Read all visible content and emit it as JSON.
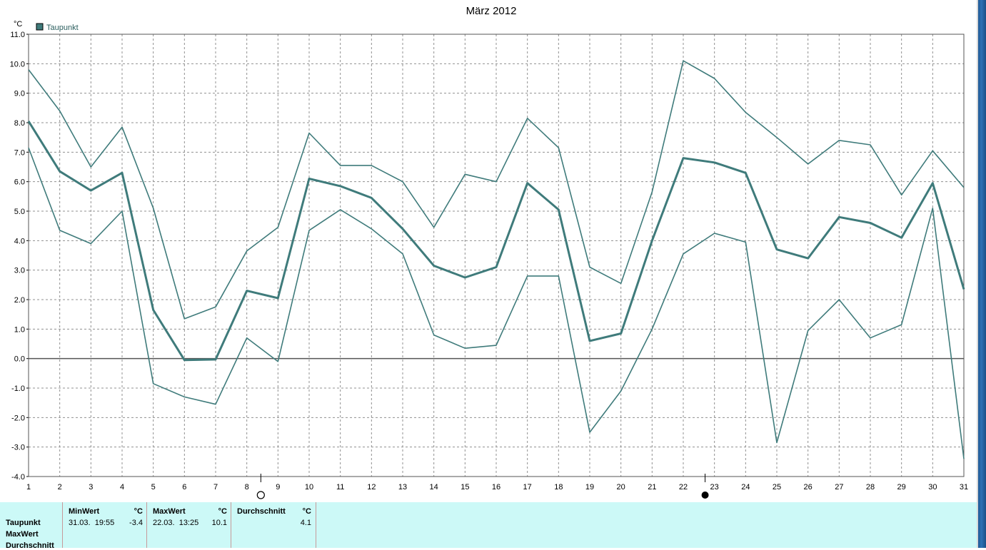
{
  "chart_data": {
    "type": "line",
    "title": "März 2012",
    "ylabel": "°C",
    "ylim": [
      -4.0,
      11.0
    ],
    "y_ticks": [
      "11.0",
      "10.0",
      "9.0",
      "8.0",
      "7.0",
      "6.0",
      "5.0",
      "4.0",
      "3.0",
      "2.0",
      "1.0",
      "0.0",
      "-1.0",
      "-2.0",
      "-3.0",
      "-4.0"
    ],
    "x": [
      1,
      2,
      3,
      4,
      5,
      6,
      7,
      8,
      9,
      10,
      11,
      12,
      13,
      14,
      15,
      16,
      17,
      18,
      19,
      20,
      21,
      22,
      23,
      24,
      25,
      26,
      27,
      28,
      29,
      30,
      31
    ],
    "x_labels": [
      "1",
      "2",
      "3",
      "4",
      "5",
      "6",
      "7",
      "8",
      "9",
      "10",
      "11",
      "12",
      "13",
      "14",
      "15",
      "16",
      "17",
      "18",
      "19",
      "20",
      "21",
      "22",
      "23",
      "24",
      "25",
      "26",
      "27",
      "28",
      "29",
      "30",
      "31"
    ],
    "grid": true,
    "legend": {
      "position": "top-left",
      "label": "Taupunkt",
      "color": "#3f7b7b"
    },
    "series": [
      {
        "name": "Taupunkt",
        "role": "max",
        "values": [
          9.8,
          8.4,
          6.5,
          7.85,
          5.1,
          1.35,
          1.75,
          3.65,
          4.45,
          7.65,
          6.55,
          6.55,
          6.0,
          4.45,
          6.25,
          6.0,
          8.15,
          7.15,
          3.1,
          2.55,
          5.65,
          10.1,
          9.5,
          8.35,
          7.5,
          6.6,
          7.4,
          7.25,
          5.55,
          7.05,
          5.8
        ]
      },
      {
        "name": "Taupunkt",
        "role": "avg",
        "values": [
          8.05,
          6.35,
          5.7,
          6.3,
          1.65,
          -0.05,
          -0.03,
          2.3,
          2.05,
          6.1,
          5.85,
          5.45,
          4.4,
          3.15,
          2.75,
          3.1,
          5.95,
          5.05,
          0.6,
          0.85,
          4.0,
          6.8,
          6.65,
          6.3,
          3.7,
          3.4,
          4.8,
          4.6,
          4.1,
          5.95,
          2.35
        ]
      },
      {
        "name": "Taupunkt",
        "role": "min",
        "values": [
          7.15,
          4.35,
          3.9,
          5.0,
          -0.85,
          -1.3,
          -1.55,
          0.7,
          -0.1,
          4.35,
          5.05,
          4.4,
          3.55,
          0.8,
          0.35,
          0.45,
          2.8,
          2.8,
          -2.5,
          -1.1,
          1.0,
          3.55,
          4.25,
          3.95,
          -2.85,
          0.95,
          2.0,
          0.7,
          1.15,
          5.1,
          -3.4
        ]
      }
    ],
    "moon_phases": [
      {
        "day": 8.45,
        "phase": "full-moon"
      },
      {
        "day": 22.7,
        "phase": "new-moon"
      }
    ],
    "colors": {
      "line": "#3f7b7b",
      "zero_line": "#555555",
      "grid": "#909090"
    }
  },
  "summary": {
    "rows": [
      "Taupunkt",
      "MaxWert",
      "Durchschnitt"
    ],
    "columns": [
      {
        "header": "MinWert",
        "unit": "°C",
        "datetime": "31.03.  19:55",
        "value": "-3.4"
      },
      {
        "header": "MaxWert",
        "unit": "°C",
        "datetime": "22.03.  13:25",
        "value": "10.1"
      },
      {
        "header": "Durchschnitt",
        "unit": "°C",
        "datetime": "",
        "value": "4.1"
      }
    ]
  }
}
